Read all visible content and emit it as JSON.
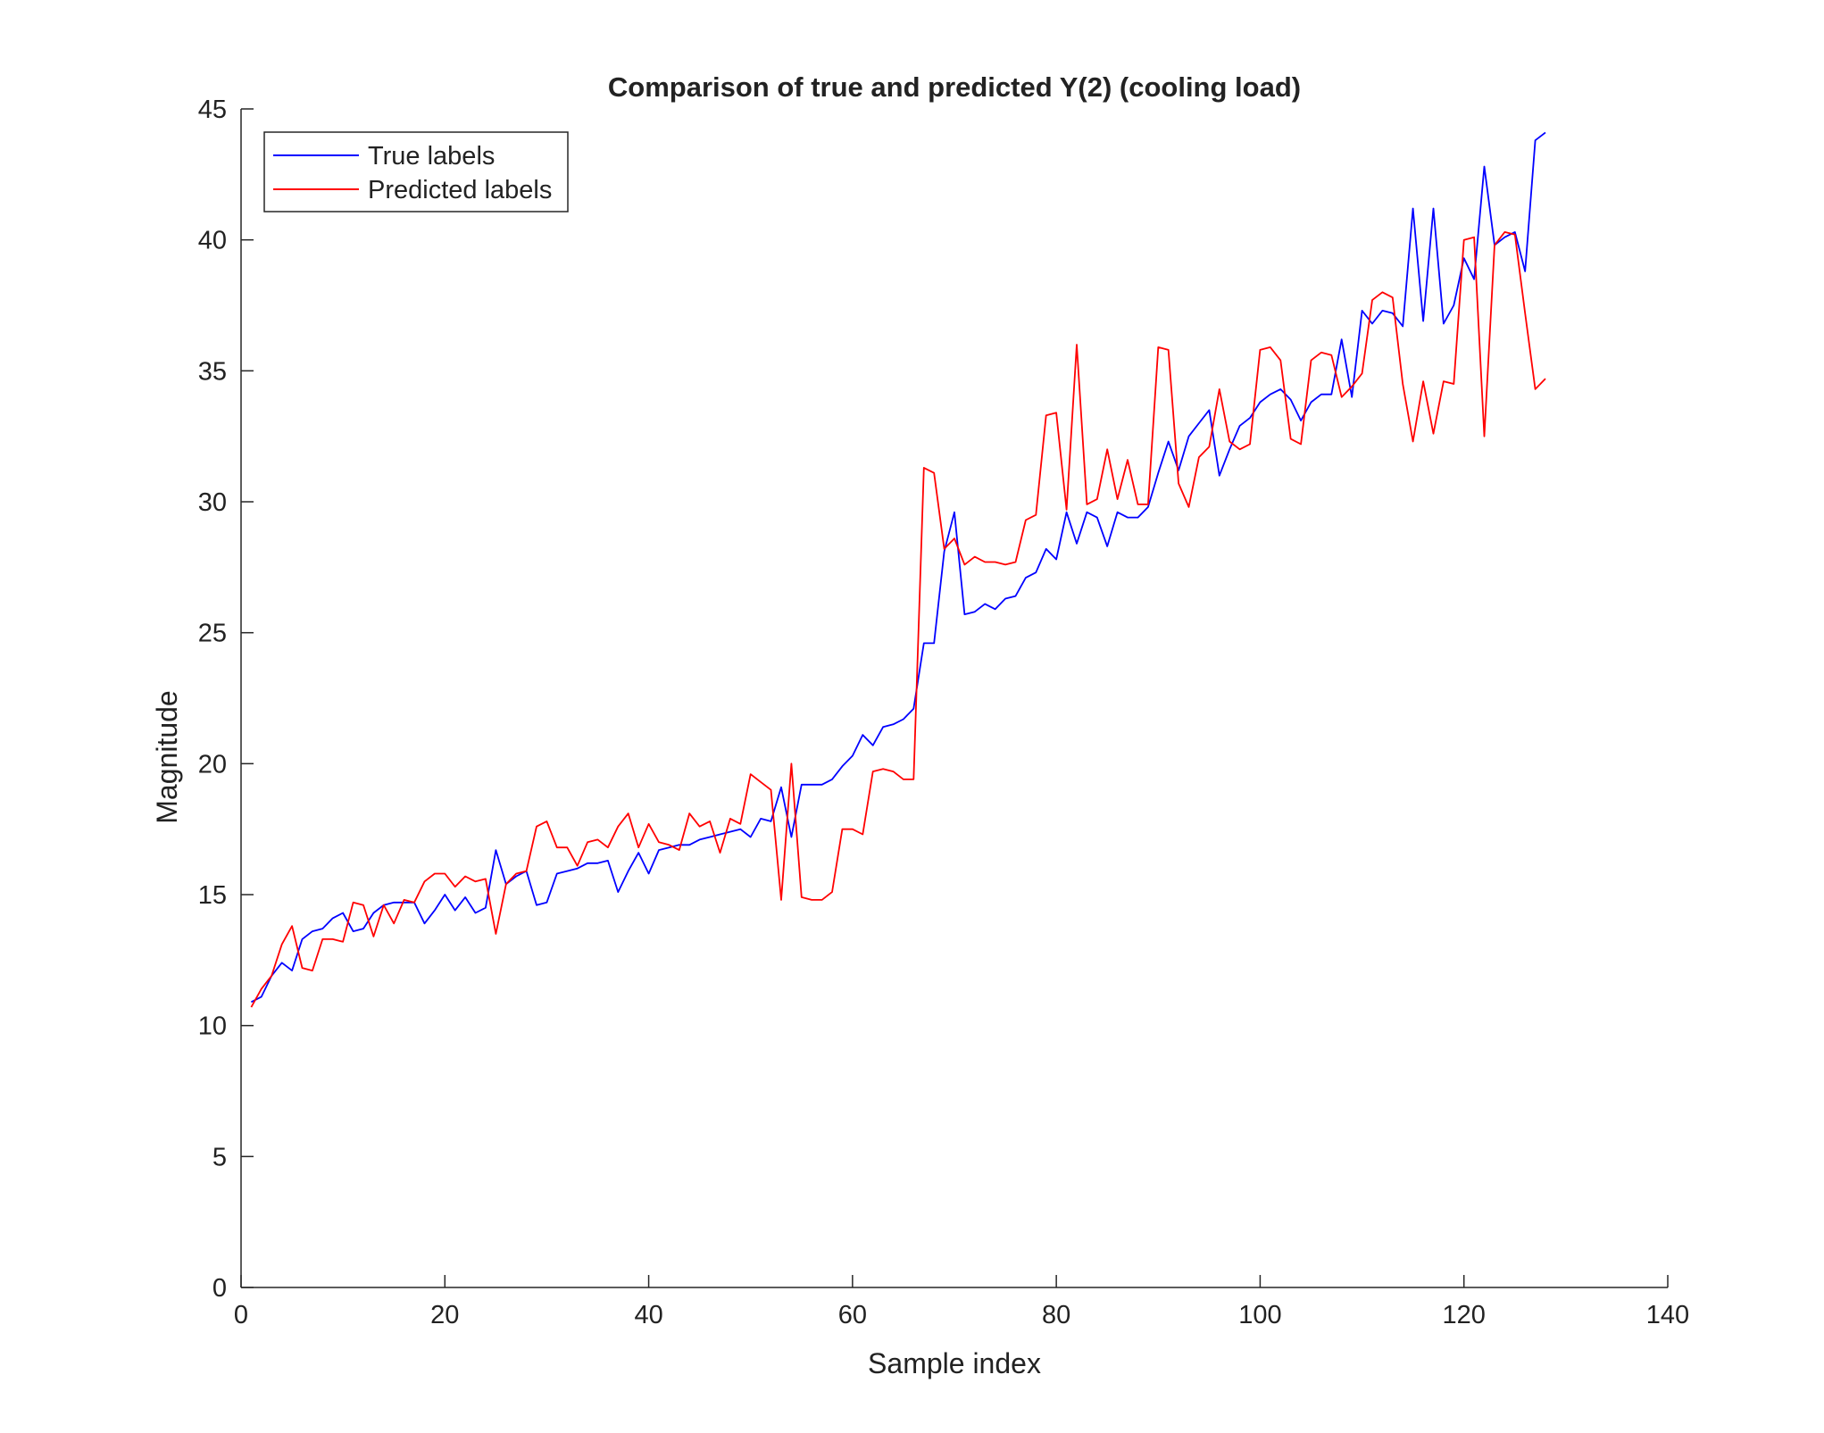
{
  "chart_data": {
    "type": "line",
    "title": "Comparison of true and predicted Y(2) (cooling load)",
    "xlabel": "Sample index",
    "ylabel": "Magnitude",
    "xlim": [
      0,
      140
    ],
    "ylim": [
      0,
      45
    ],
    "xticks": [
      0,
      20,
      40,
      60,
      80,
      100,
      120,
      140
    ],
    "yticks": [
      0,
      5,
      10,
      15,
      20,
      25,
      30,
      35,
      40,
      45
    ],
    "xtick_labels": [
      "0",
      "20",
      "40",
      "60",
      "80",
      "100",
      "120",
      "140"
    ],
    "ytick_labels": [
      "0",
      "5",
      "10",
      "15",
      "20",
      "25",
      "30",
      "35",
      "40",
      "45"
    ],
    "grid": false,
    "legend_position": "top-left",
    "series": [
      {
        "name": "True labels",
        "color": "#0000ff",
        "x": [
          1,
          2,
          3,
          4,
          5,
          6,
          7,
          8,
          9,
          10,
          11,
          12,
          13,
          14,
          15,
          16,
          17,
          18,
          19,
          20,
          21,
          22,
          23,
          24,
          25,
          26,
          27,
          28,
          29,
          30,
          31,
          32,
          33,
          34,
          35,
          36,
          37,
          38,
          39,
          40,
          41,
          42,
          43,
          44,
          45,
          46,
          47,
          48,
          49,
          50,
          51,
          52,
          53,
          54,
          55,
          56,
          57,
          58,
          59,
          60,
          61,
          62,
          63,
          64,
          65,
          66,
          67,
          68,
          69,
          70,
          71,
          72,
          73,
          74,
          75,
          76,
          77,
          78,
          79,
          80,
          81,
          82,
          83,
          84,
          85,
          86,
          87,
          88,
          89,
          90,
          91,
          92,
          93,
          94,
          95,
          96,
          97,
          98,
          99,
          100,
          101,
          102,
          103,
          104,
          105,
          106,
          107,
          108,
          109,
          110,
          111,
          112,
          113,
          114,
          115,
          116,
          117,
          118,
          119,
          120,
          121,
          122,
          123,
          124,
          125,
          126,
          127,
          128
        ],
        "values": [
          10.9,
          11.1,
          11.9,
          12.4,
          12.1,
          13.3,
          13.6,
          13.7,
          14.1,
          14.3,
          13.6,
          13.7,
          14.3,
          14.6,
          14.7,
          14.7,
          14.7,
          13.9,
          14.4,
          15.0,
          14.4,
          14.9,
          14.3,
          14.5,
          16.7,
          15.4,
          15.7,
          15.9,
          14.6,
          14.7,
          15.8,
          15.9,
          16.0,
          16.2,
          16.2,
          16.3,
          15.1,
          15.9,
          16.6,
          15.8,
          16.7,
          16.8,
          16.9,
          16.9,
          17.1,
          17.2,
          17.3,
          17.4,
          17.5,
          17.2,
          17.9,
          17.8,
          19.1,
          17.2,
          19.2,
          19.2,
          19.2,
          19.4,
          19.9,
          20.3,
          21.1,
          20.7,
          21.4,
          21.5,
          21.7,
          22.1,
          24.6,
          24.6,
          28.1,
          29.6,
          25.7,
          25.8,
          26.1,
          25.9,
          26.3,
          26.4,
          27.1,
          27.3,
          28.2,
          27.8,
          29.6,
          28.4,
          29.6,
          29.4,
          28.3,
          29.6,
          29.4,
          29.4,
          29.8,
          31.1,
          32.3,
          31.2,
          32.5,
          33.0,
          33.5,
          31.0,
          32.0,
          32.9,
          33.2,
          33.8,
          34.1,
          34.3,
          33.9,
          33.1,
          33.8,
          34.1,
          34.1,
          36.2,
          34.0,
          37.3,
          36.8,
          37.3,
          37.2,
          36.7,
          41.2,
          36.9,
          41.2,
          36.8,
          37.5,
          39.3,
          38.5,
          42.8,
          39.8,
          40.1,
          40.3,
          38.8,
          43.8,
          44.1
        ]
      },
      {
        "name": "Predicted labels",
        "color": "#ff0000",
        "x": [
          1,
          2,
          3,
          4,
          5,
          6,
          7,
          8,
          9,
          10,
          11,
          12,
          13,
          14,
          15,
          16,
          17,
          18,
          19,
          20,
          21,
          22,
          23,
          24,
          25,
          26,
          27,
          28,
          29,
          30,
          31,
          32,
          33,
          34,
          35,
          36,
          37,
          38,
          39,
          40,
          41,
          42,
          43,
          44,
          45,
          46,
          47,
          48,
          49,
          50,
          51,
          52,
          53,
          54,
          55,
          56,
          57,
          58,
          59,
          60,
          61,
          62,
          63,
          64,
          65,
          66,
          67,
          68,
          69,
          70,
          71,
          72,
          73,
          74,
          75,
          76,
          77,
          78,
          79,
          80,
          81,
          82,
          83,
          84,
          85,
          86,
          87,
          88,
          89,
          90,
          91,
          92,
          93,
          94,
          95,
          96,
          97,
          98,
          99,
          100,
          101,
          102,
          103,
          104,
          105,
          106,
          107,
          108,
          109,
          110,
          111,
          112,
          113,
          114,
          115,
          116,
          117,
          118,
          119,
          120,
          121,
          122,
          123,
          124,
          125,
          126,
          127,
          128
        ],
        "values": [
          10.7,
          11.4,
          11.9,
          13.1,
          13.8,
          12.2,
          12.1,
          13.3,
          13.3,
          13.2,
          14.7,
          14.6,
          13.4,
          14.6,
          13.9,
          14.8,
          14.7,
          15.5,
          15.8,
          15.8,
          15.3,
          15.7,
          15.5,
          15.6,
          13.5,
          15.4,
          15.8,
          15.9,
          17.6,
          17.8,
          16.8,
          16.8,
          16.1,
          17.0,
          17.1,
          16.8,
          17.6,
          18.1,
          16.8,
          17.7,
          17.0,
          16.9,
          16.7,
          18.1,
          17.6,
          17.8,
          16.6,
          17.9,
          17.7,
          19.6,
          19.3,
          19.0,
          14.8,
          20.0,
          14.9,
          14.8,
          14.8,
          15.1,
          17.5,
          17.5,
          17.3,
          19.7,
          19.8,
          19.7,
          19.4,
          19.4,
          31.3,
          31.1,
          28.2,
          28.6,
          27.6,
          27.9,
          27.7,
          27.7,
          27.6,
          27.7,
          29.3,
          29.5,
          33.3,
          33.4,
          29.7,
          36.0,
          29.9,
          30.1,
          32.0,
          30.1,
          31.6,
          29.9,
          29.9,
          35.9,
          35.8,
          30.7,
          29.8,
          31.7,
          32.1,
          34.3,
          32.3,
          32.0,
          32.2,
          35.8,
          35.9,
          35.4,
          32.4,
          32.2,
          35.4,
          35.7,
          35.6,
          34.0,
          34.4,
          34.9,
          37.7,
          38.0,
          37.8,
          34.5,
          32.3,
          34.6,
          32.6,
          34.6,
          34.5,
          40.0,
          40.1,
          32.5,
          39.8,
          40.3,
          40.2,
          37.2,
          34.3,
          34.7
        ]
      }
    ]
  }
}
